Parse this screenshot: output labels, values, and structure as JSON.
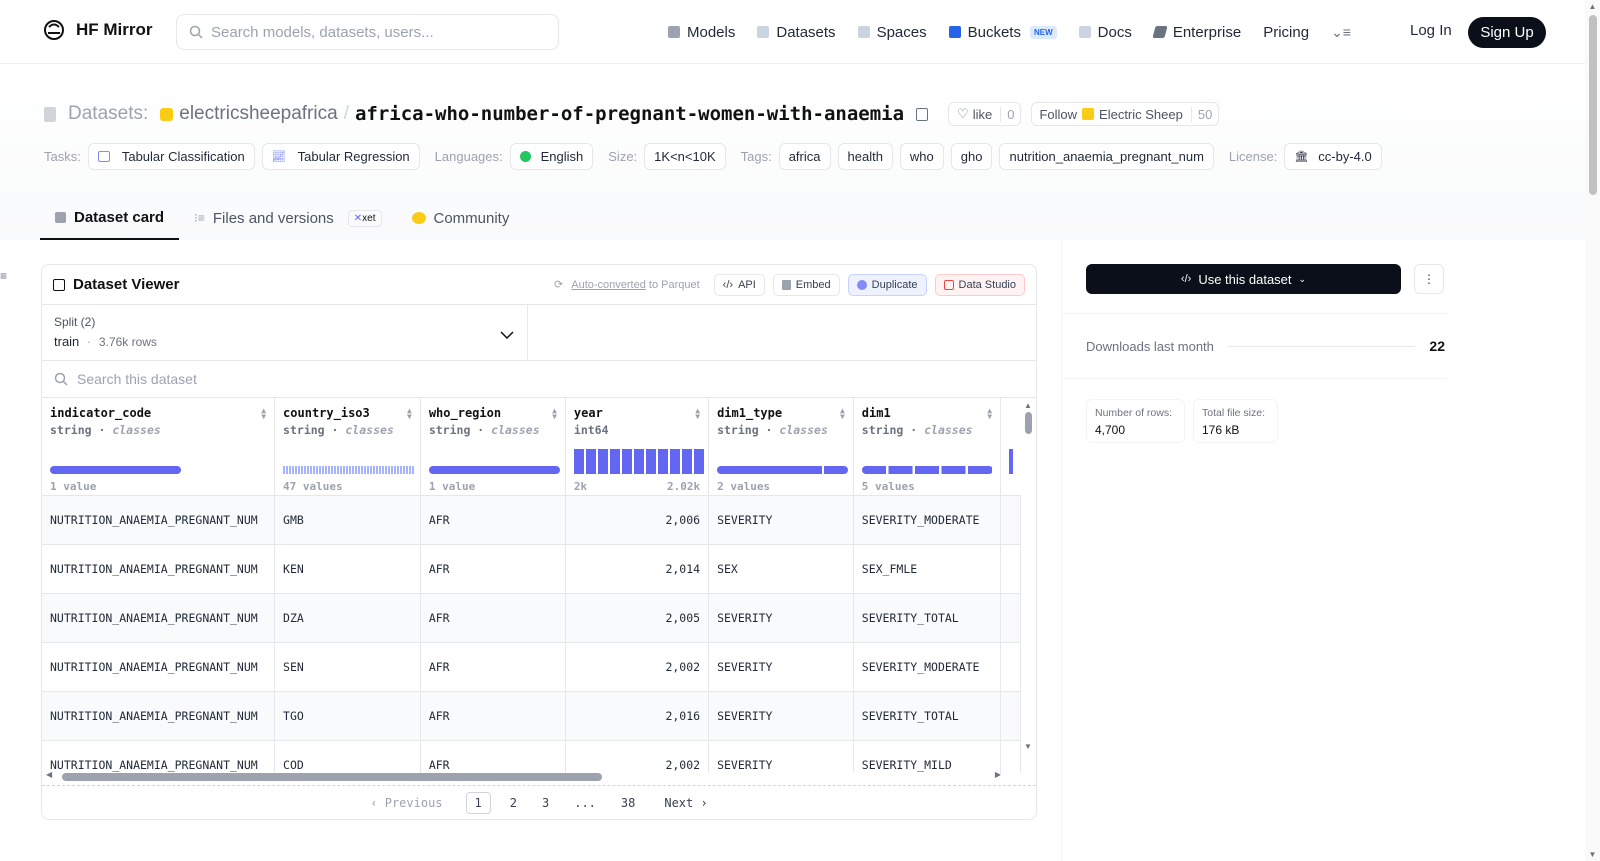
{
  "nav": {
    "brand": "HF Mirror",
    "search_placeholder": "Search models, datasets, users...",
    "items": [
      {
        "label": "Models",
        "icon": "cube-icon",
        "color": "#9ca3af"
      },
      {
        "label": "Datasets",
        "icon": "database-icon",
        "color": "#9ca3af"
      },
      {
        "label": "Spaces",
        "icon": "grid-icon",
        "color": "#9ca3af"
      },
      {
        "label": "Buckets",
        "icon": "bucket-icon",
        "color": "#2563eb",
        "badge": "NEW"
      },
      {
        "label": "Docs",
        "icon": "book-icon",
        "color": "#9ca3af"
      },
      {
        "label": "Enterprise",
        "icon": "enterprise-icon",
        "color": "#6b7280"
      },
      {
        "label": "Pricing"
      }
    ],
    "login": "Log In",
    "signup": "Sign Up"
  },
  "repo": {
    "section": "Datasets:",
    "owner": "electricsheepafrica",
    "separator": "/",
    "name": "africa-who-number-of-pregnant-women-with-anaemia",
    "like_label": "like",
    "like_count": "0",
    "follow_label": "Follow",
    "org": "Electric Sheep",
    "follow_count": "50"
  },
  "meta": {
    "tasks_label": "Tasks:",
    "tasks": [
      "Tabular Classification",
      "Tabular Regression"
    ],
    "languages_label": "Languages:",
    "language": "English",
    "size_label": "Size:",
    "size": "1K<n<10K",
    "tags_label": "Tags:",
    "tags": [
      "africa",
      "health",
      "who",
      "gho",
      "nutrition_anaemia_pregnant_num"
    ],
    "license_label": "License:",
    "license": "cc-by-4.0"
  },
  "tabs": [
    {
      "label": "Dataset card",
      "active": true
    },
    {
      "label": "Files and versions",
      "badge": "xet"
    },
    {
      "label": "Community"
    }
  ],
  "viewer": {
    "title": "Dataset Viewer",
    "auto_converted": "Auto-converted",
    "to_parquet": "to Parquet",
    "api": "API",
    "embed": "Embed",
    "duplicate": "Duplicate",
    "data_studio": "Data Studio",
    "split_label": "Split (2)",
    "split_value": "train",
    "split_dot": "·",
    "split_rows": "3.76k rows",
    "search_placeholder": "Search this dataset",
    "columns": [
      {
        "name": "indicator_code",
        "type": "string",
        "kind": "classes",
        "stat": "1 value"
      },
      {
        "name": "country_iso3",
        "type": "string",
        "kind": "classes",
        "stat": "47 values"
      },
      {
        "name": "who_region",
        "type": "string",
        "kind": "classes",
        "stat": "1 value"
      },
      {
        "name": "year",
        "type": "int64",
        "kind": "",
        "stat_min": "2k",
        "stat_max": "2.02k"
      },
      {
        "name": "dim1_type",
        "type": "string",
        "kind": "classes",
        "stat": "2 values"
      },
      {
        "name": "dim1",
        "type": "string",
        "kind": "classes",
        "stat": "5 values"
      }
    ],
    "rows": [
      [
        "NUTRITION_ANAEMIA_PREGNANT_NUM",
        "GMB",
        "AFR",
        "2,006",
        "SEVERITY",
        "SEVERITY_MODERATE"
      ],
      [
        "NUTRITION_ANAEMIA_PREGNANT_NUM",
        "KEN",
        "AFR",
        "2,014",
        "SEX",
        "SEX_FMLE"
      ],
      [
        "NUTRITION_ANAEMIA_PREGNANT_NUM",
        "DZA",
        "AFR",
        "2,005",
        "SEVERITY",
        "SEVERITY_TOTAL"
      ],
      [
        "NUTRITION_ANAEMIA_PREGNANT_NUM",
        "SEN",
        "AFR",
        "2,002",
        "SEVERITY",
        "SEVERITY_MODERATE"
      ],
      [
        "NUTRITION_ANAEMIA_PREGNANT_NUM",
        "TGO",
        "AFR",
        "2,016",
        "SEVERITY",
        "SEVERITY_TOTAL"
      ],
      [
        "NUTRITION_ANAEMIA_PREGNANT_NUM",
        "COD",
        "AFR",
        "2,002",
        "SEVERITY",
        "SEVERITY_MILD"
      ]
    ],
    "pager": {
      "prev": "Previous",
      "pages": [
        "1",
        "2",
        "3",
        "...",
        "38"
      ],
      "next": "Next"
    }
  },
  "sidebar": {
    "use_button": "Use this dataset",
    "downloads_label": "Downloads last month",
    "downloads": "22",
    "rows_label": "Number of rows:",
    "rows_value": "4,700",
    "size_label": "Total file size:",
    "size_value": "176 kB"
  },
  "colors": {
    "accent": "#6366f1",
    "dark": "#0b0f19"
  }
}
